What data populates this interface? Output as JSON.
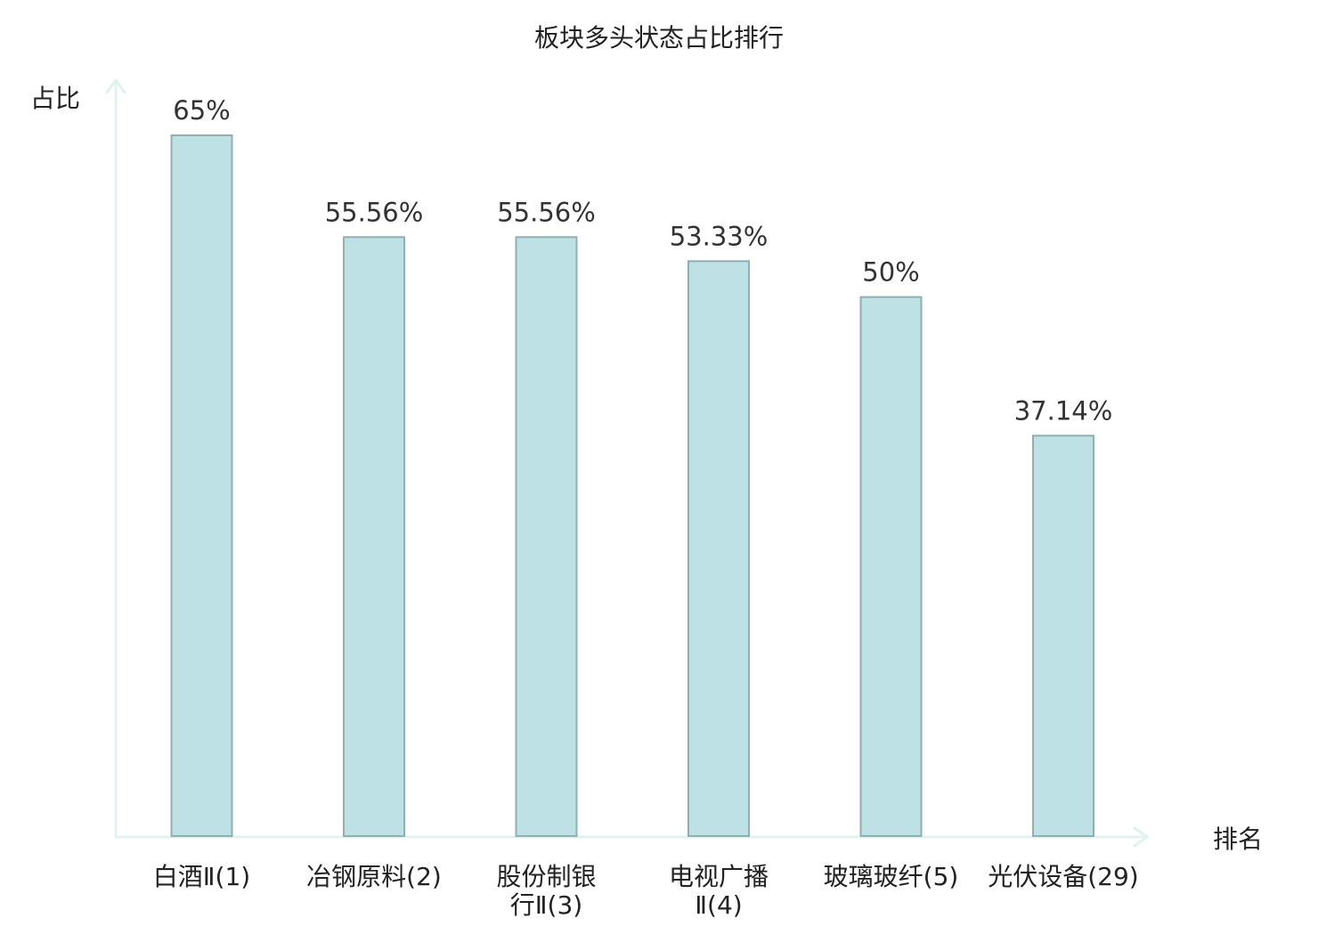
{
  "chart_data": {
    "type": "bar",
    "title": "板块多头状态占比排行",
    "ylabel": "占比",
    "xlabel": "排名",
    "ylim": [
      0,
      65
    ],
    "grid": false,
    "categories": [
      {
        "name": "白酒Ⅱ",
        "rank": "(1)",
        "lines": [
          "白酒Ⅱ(1)"
        ],
        "highlight": false
      },
      {
        "name": "冶钢原料",
        "rank": "(2)",
        "lines": [
          "冶钢原料(2)"
        ],
        "highlight": false
      },
      {
        "name": "股份制银行Ⅱ",
        "rank": "(3)",
        "lines": [
          "股份制银",
          "行Ⅱ(3)"
        ],
        "highlight": false
      },
      {
        "name": "电视广播Ⅱ",
        "rank": "(4)",
        "lines": [
          "电视广播",
          "Ⅱ(4)"
        ],
        "highlight": false
      },
      {
        "name": "玻璃玻纤",
        "rank": "(5)",
        "lines": [
          "玻璃玻纤(5)"
        ],
        "highlight": false
      },
      {
        "name": "光伏设备",
        "rank": "(29)",
        "lines": [
          "光伏设备(29)"
        ],
        "highlight": true
      }
    ],
    "values": [
      65,
      55.56,
      55.56,
      53.33,
      50,
      37.14
    ],
    "value_labels": [
      "65%",
      "55.56%",
      "55.56%",
      "53.33%",
      "50%",
      "37.14%"
    ],
    "colors": {
      "bar_fill": "#bde1e4",
      "bar_stroke": "#8fb0b2",
      "axis": "#e0f2f0",
      "highlight_text": "#e02020",
      "text": "#222222"
    }
  }
}
